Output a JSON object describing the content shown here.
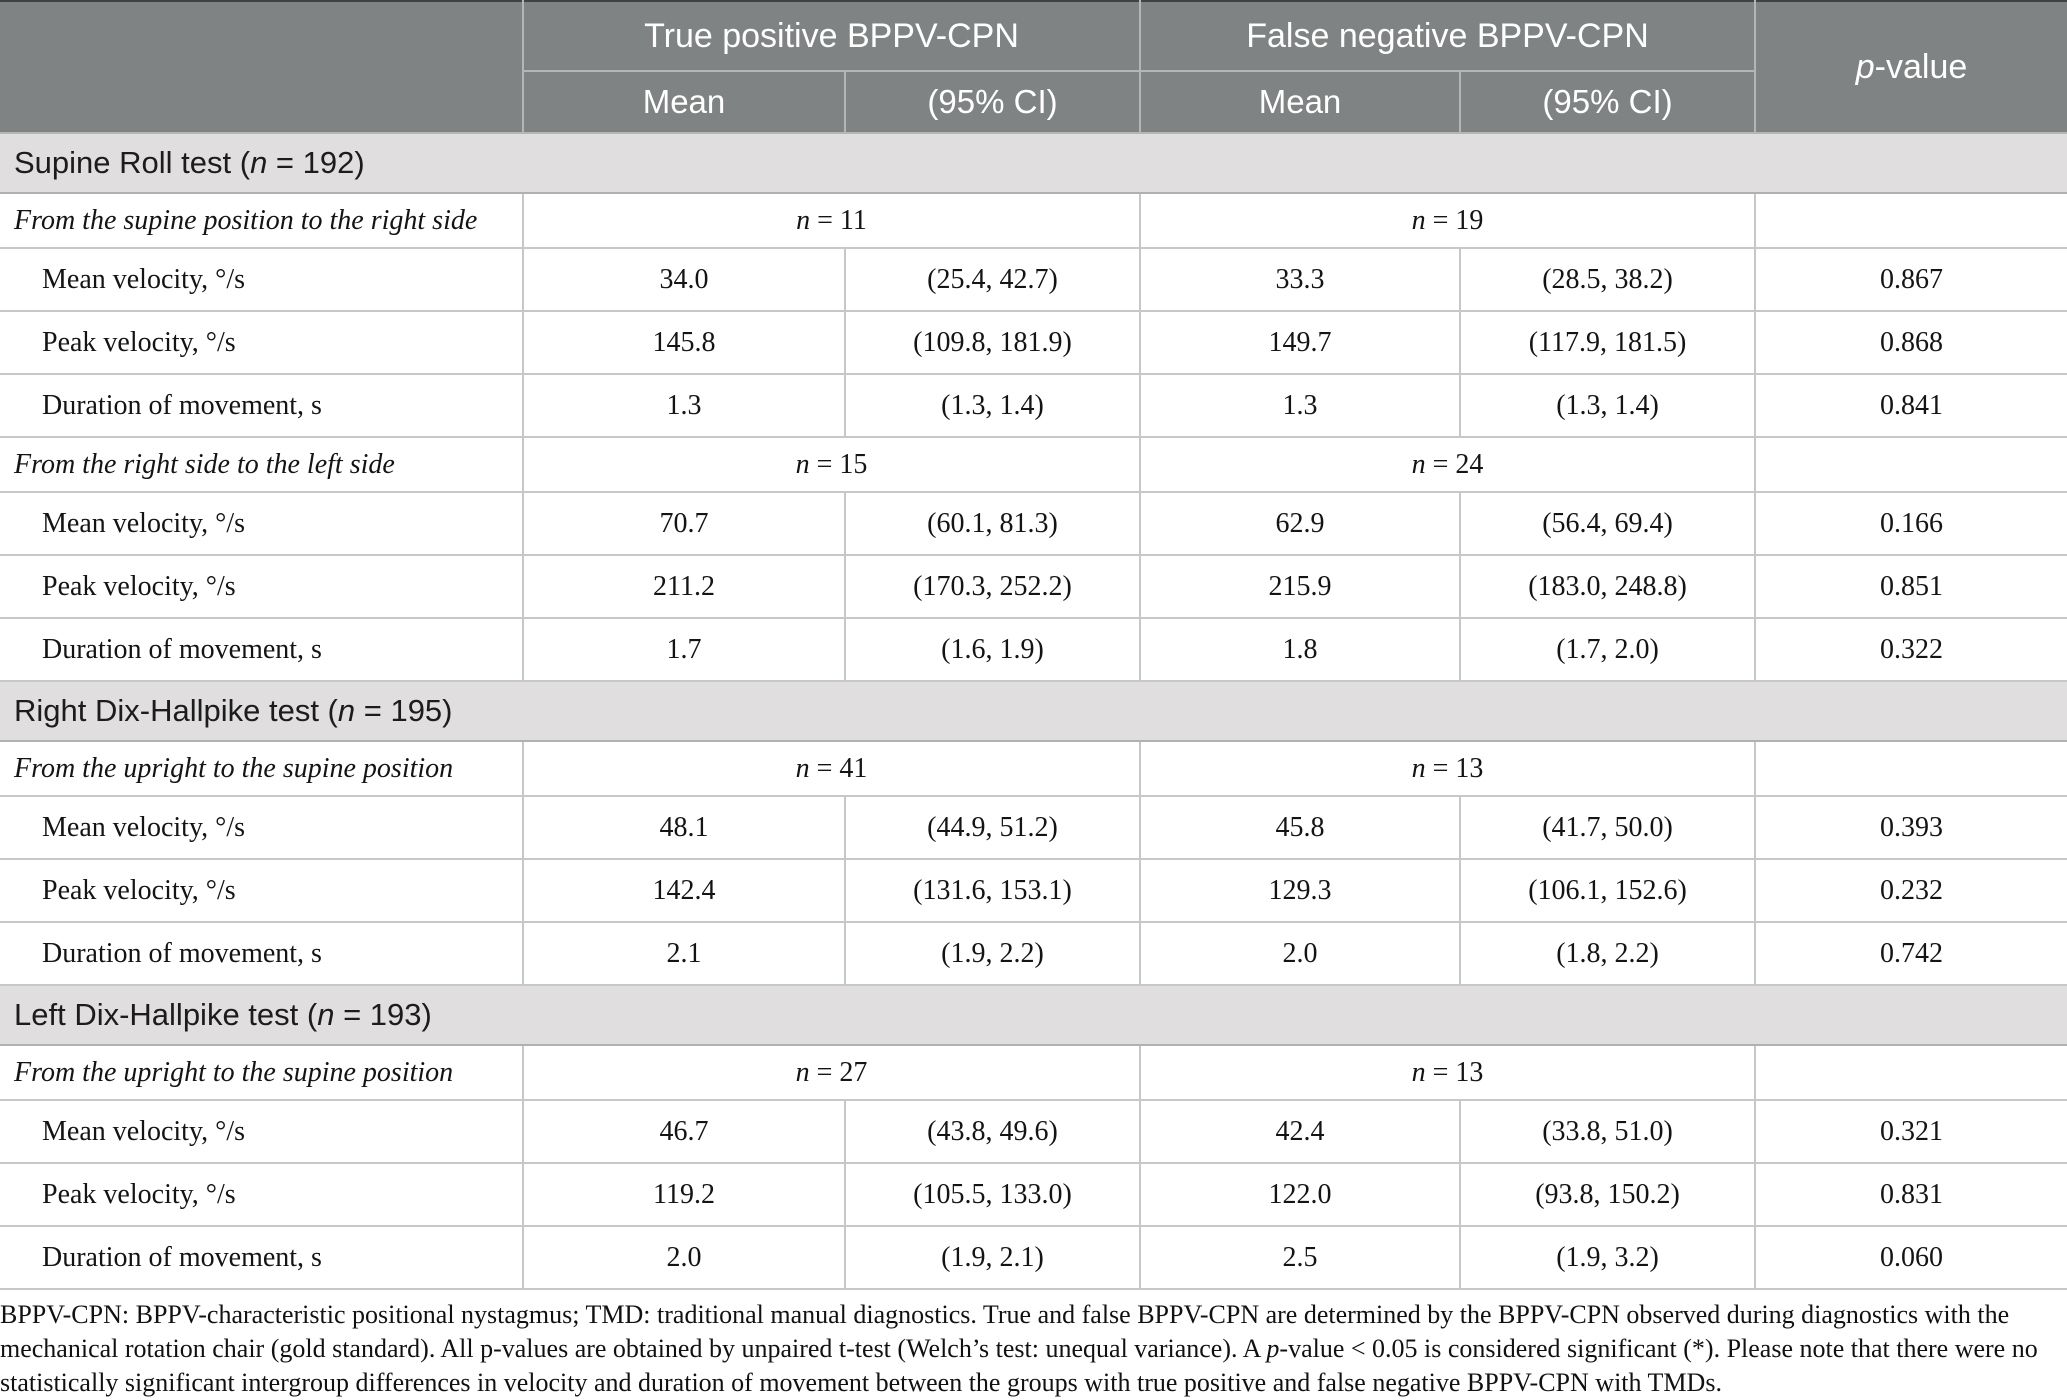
{
  "header": {
    "group1": "True positive BPPV-CPN",
    "group2": "False negative BPPV-CPN",
    "mean": "Mean",
    "ci": "(95% CI)",
    "pvalue": "p-value"
  },
  "sections": [
    {
      "title": "Supine Roll test (n = 192)",
      "subsections": [
        {
          "label": "From the supine position to the right side",
          "tp_n": "n = 11",
          "fn_n": "n = 19",
          "rows": [
            {
              "label": "Mean velocity, °/s",
              "tp_mean": "34.0",
              "tp_ci": "(25.4, 42.7)",
              "fn_mean": "33.3",
              "fn_ci": "(28.5, 38.2)",
              "p": "0.867"
            },
            {
              "label": "Peak velocity, °/s",
              "tp_mean": "145.8",
              "tp_ci": "(109.8, 181.9)",
              "fn_mean": "149.7",
              "fn_ci": "(117.9, 181.5)",
              "p": "0.868"
            },
            {
              "label": "Duration of movement, s",
              "tp_mean": "1.3",
              "tp_ci": "(1.3, 1.4)",
              "fn_mean": "1.3",
              "fn_ci": "(1.3, 1.4)",
              "p": "0.841"
            }
          ]
        },
        {
          "label": "From the right side to the left side",
          "tp_n": "n = 15",
          "fn_n": "n = 24",
          "rows": [
            {
              "label": "Mean velocity, °/s",
              "tp_mean": "70.7",
              "tp_ci": "(60.1, 81.3)",
              "fn_mean": "62.9",
              "fn_ci": "(56.4, 69.4)",
              "p": "0.166"
            },
            {
              "label": "Peak velocity, °/s",
              "tp_mean": "211.2",
              "tp_ci": "(170.3, 252.2)",
              "fn_mean": "215.9",
              "fn_ci": "(183.0, 248.8)",
              "p": "0.851"
            },
            {
              "label": "Duration of movement, s",
              "tp_mean": "1.7",
              "tp_ci": "(1.6, 1.9)",
              "fn_mean": "1.8",
              "fn_ci": "(1.7, 2.0)",
              "p": "0.322"
            }
          ]
        }
      ]
    },
    {
      "title": "Right Dix-Hallpike test (n = 195)",
      "subsections": [
        {
          "label": "From the upright to the supine position",
          "tp_n": "n = 41",
          "fn_n": "n = 13",
          "rows": [
            {
              "label": "Mean velocity, °/s",
              "tp_mean": "48.1",
              "tp_ci": "(44.9, 51.2)",
              "fn_mean": "45.8",
              "fn_ci": "(41.7, 50.0)",
              "p": "0.393"
            },
            {
              "label": "Peak velocity, °/s",
              "tp_mean": "142.4",
              "tp_ci": "(131.6, 153.1)",
              "fn_mean": "129.3",
              "fn_ci": "(106.1, 152.6)",
              "p": "0.232"
            },
            {
              "label": "Duration of movement, s",
              "tp_mean": "2.1",
              "tp_ci": "(1.9, 2.2)",
              "fn_mean": "2.0",
              "fn_ci": "(1.8, 2.2)",
              "p": "0.742"
            }
          ]
        }
      ]
    },
    {
      "title": "Left Dix-Hallpike test (n = 193)",
      "subsections": [
        {
          "label": "From the upright to the supine position",
          "tp_n": "n = 27",
          "fn_n": "n = 13",
          "rows": [
            {
              "label": "Mean velocity, °/s",
              "tp_mean": "46.7",
              "tp_ci": "(43.8, 49.6)",
              "fn_mean": "42.4",
              "fn_ci": "(33.8, 51.0)",
              "p": "0.321"
            },
            {
              "label": "Peak velocity, °/s",
              "tp_mean": "119.2",
              "tp_ci": "(105.5, 133.0)",
              "fn_mean": "122.0",
              "fn_ci": "(93.8, 150.2)",
              "p": "0.831"
            },
            {
              "label": "Duration of movement, s",
              "tp_mean": "2.0",
              "tp_ci": "(1.9, 2.1)",
              "fn_mean": "2.5",
              "fn_ci": "(1.9, 3.2)",
              "p": "0.060"
            }
          ]
        }
      ]
    }
  ],
  "footnote_segments": [
    {
      "text": "BPPV-CPN: BPPV-characteristic positional nystagmus; TMD: traditional manual diagnostics. True and false BPPV-CPN are determined by the BPPV-CPN observed during diagnostics with the mechanical rotation chair (gold standard). All p-values are obtained by unpaired t-test (Welch’s test: unequal variance). A ",
      "italic": false
    },
    {
      "text": "p",
      "italic": true
    },
    {
      "text": "-value < 0.05 is considered significant (*). Please note that there were no statistically significant intergroup differences in velocity and duration of movement between the groups with true positive and false negative BPPV-CPN with TMDs.",
      "italic": false
    }
  ],
  "colors": {
    "header_bg": "#808383",
    "header_text": "#ffffff",
    "section_bg": "#e0dede",
    "body_text": "#141414",
    "grid_line": "#c6c8c8"
  }
}
